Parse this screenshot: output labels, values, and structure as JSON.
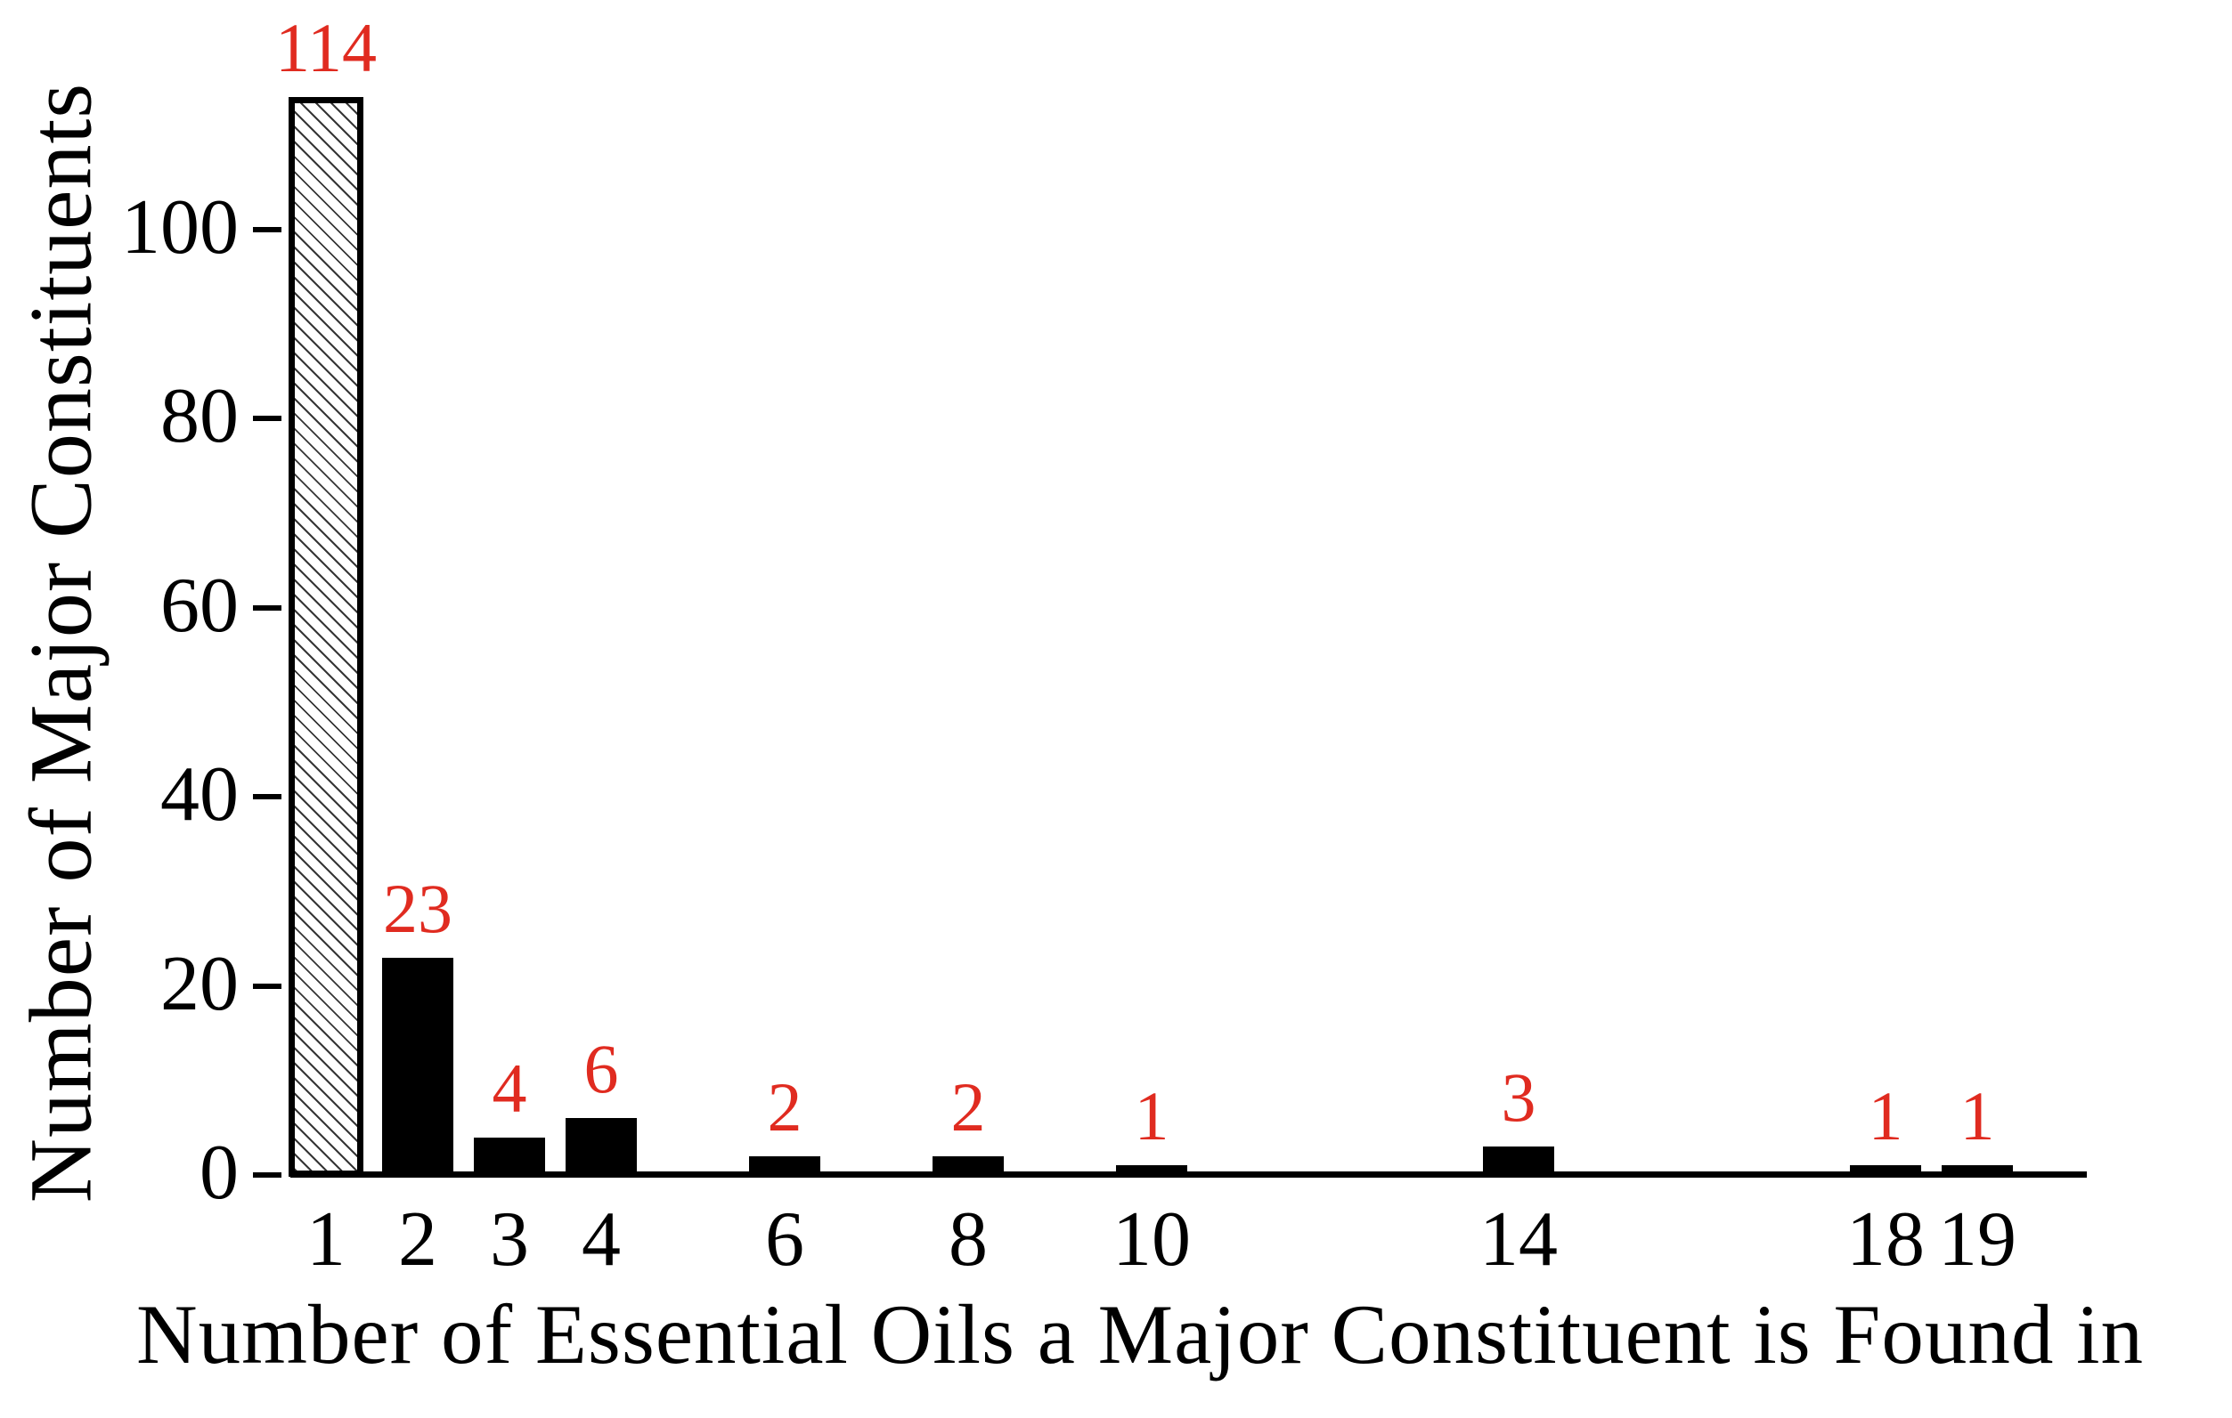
{
  "chart_data": {
    "type": "bar",
    "title": "",
    "xlabel": "Number of Essential Oils a Major Constituent is Found in",
    "ylabel": "Number of Major Constituents",
    "x_scale": "linear",
    "x_ticks": [
      1,
      2,
      3,
      4,
      6,
      8,
      10,
      14,
      18,
      19
    ],
    "y_ticks": [
      0,
      20,
      40,
      60,
      80,
      100
    ],
    "ylim": [
      0,
      120
    ],
    "grid": false,
    "legend": null,
    "bar_color": "#000000",
    "value_label_color": "#e02b20",
    "points": [
      {
        "x": 1,
        "value": 114,
        "label": "114",
        "hatched": true
      },
      {
        "x": 2,
        "value": 23,
        "label": "23",
        "hatched": false
      },
      {
        "x": 3,
        "value": 4,
        "label": "4",
        "hatched": false
      },
      {
        "x": 4,
        "value": 6,
        "label": "6",
        "hatched": false
      },
      {
        "x": 6,
        "value": 2,
        "label": "2",
        "hatched": false
      },
      {
        "x": 8,
        "value": 2,
        "label": "2",
        "hatched": false
      },
      {
        "x": 10,
        "value": 1,
        "label": "1",
        "hatched": false
      },
      {
        "x": 14,
        "value": 3,
        "label": "3",
        "hatched": false
      },
      {
        "x": 18,
        "value": 1,
        "label": "1",
        "hatched": false
      },
      {
        "x": 19,
        "value": 1,
        "label": "1",
        "hatched": false
      }
    ]
  }
}
